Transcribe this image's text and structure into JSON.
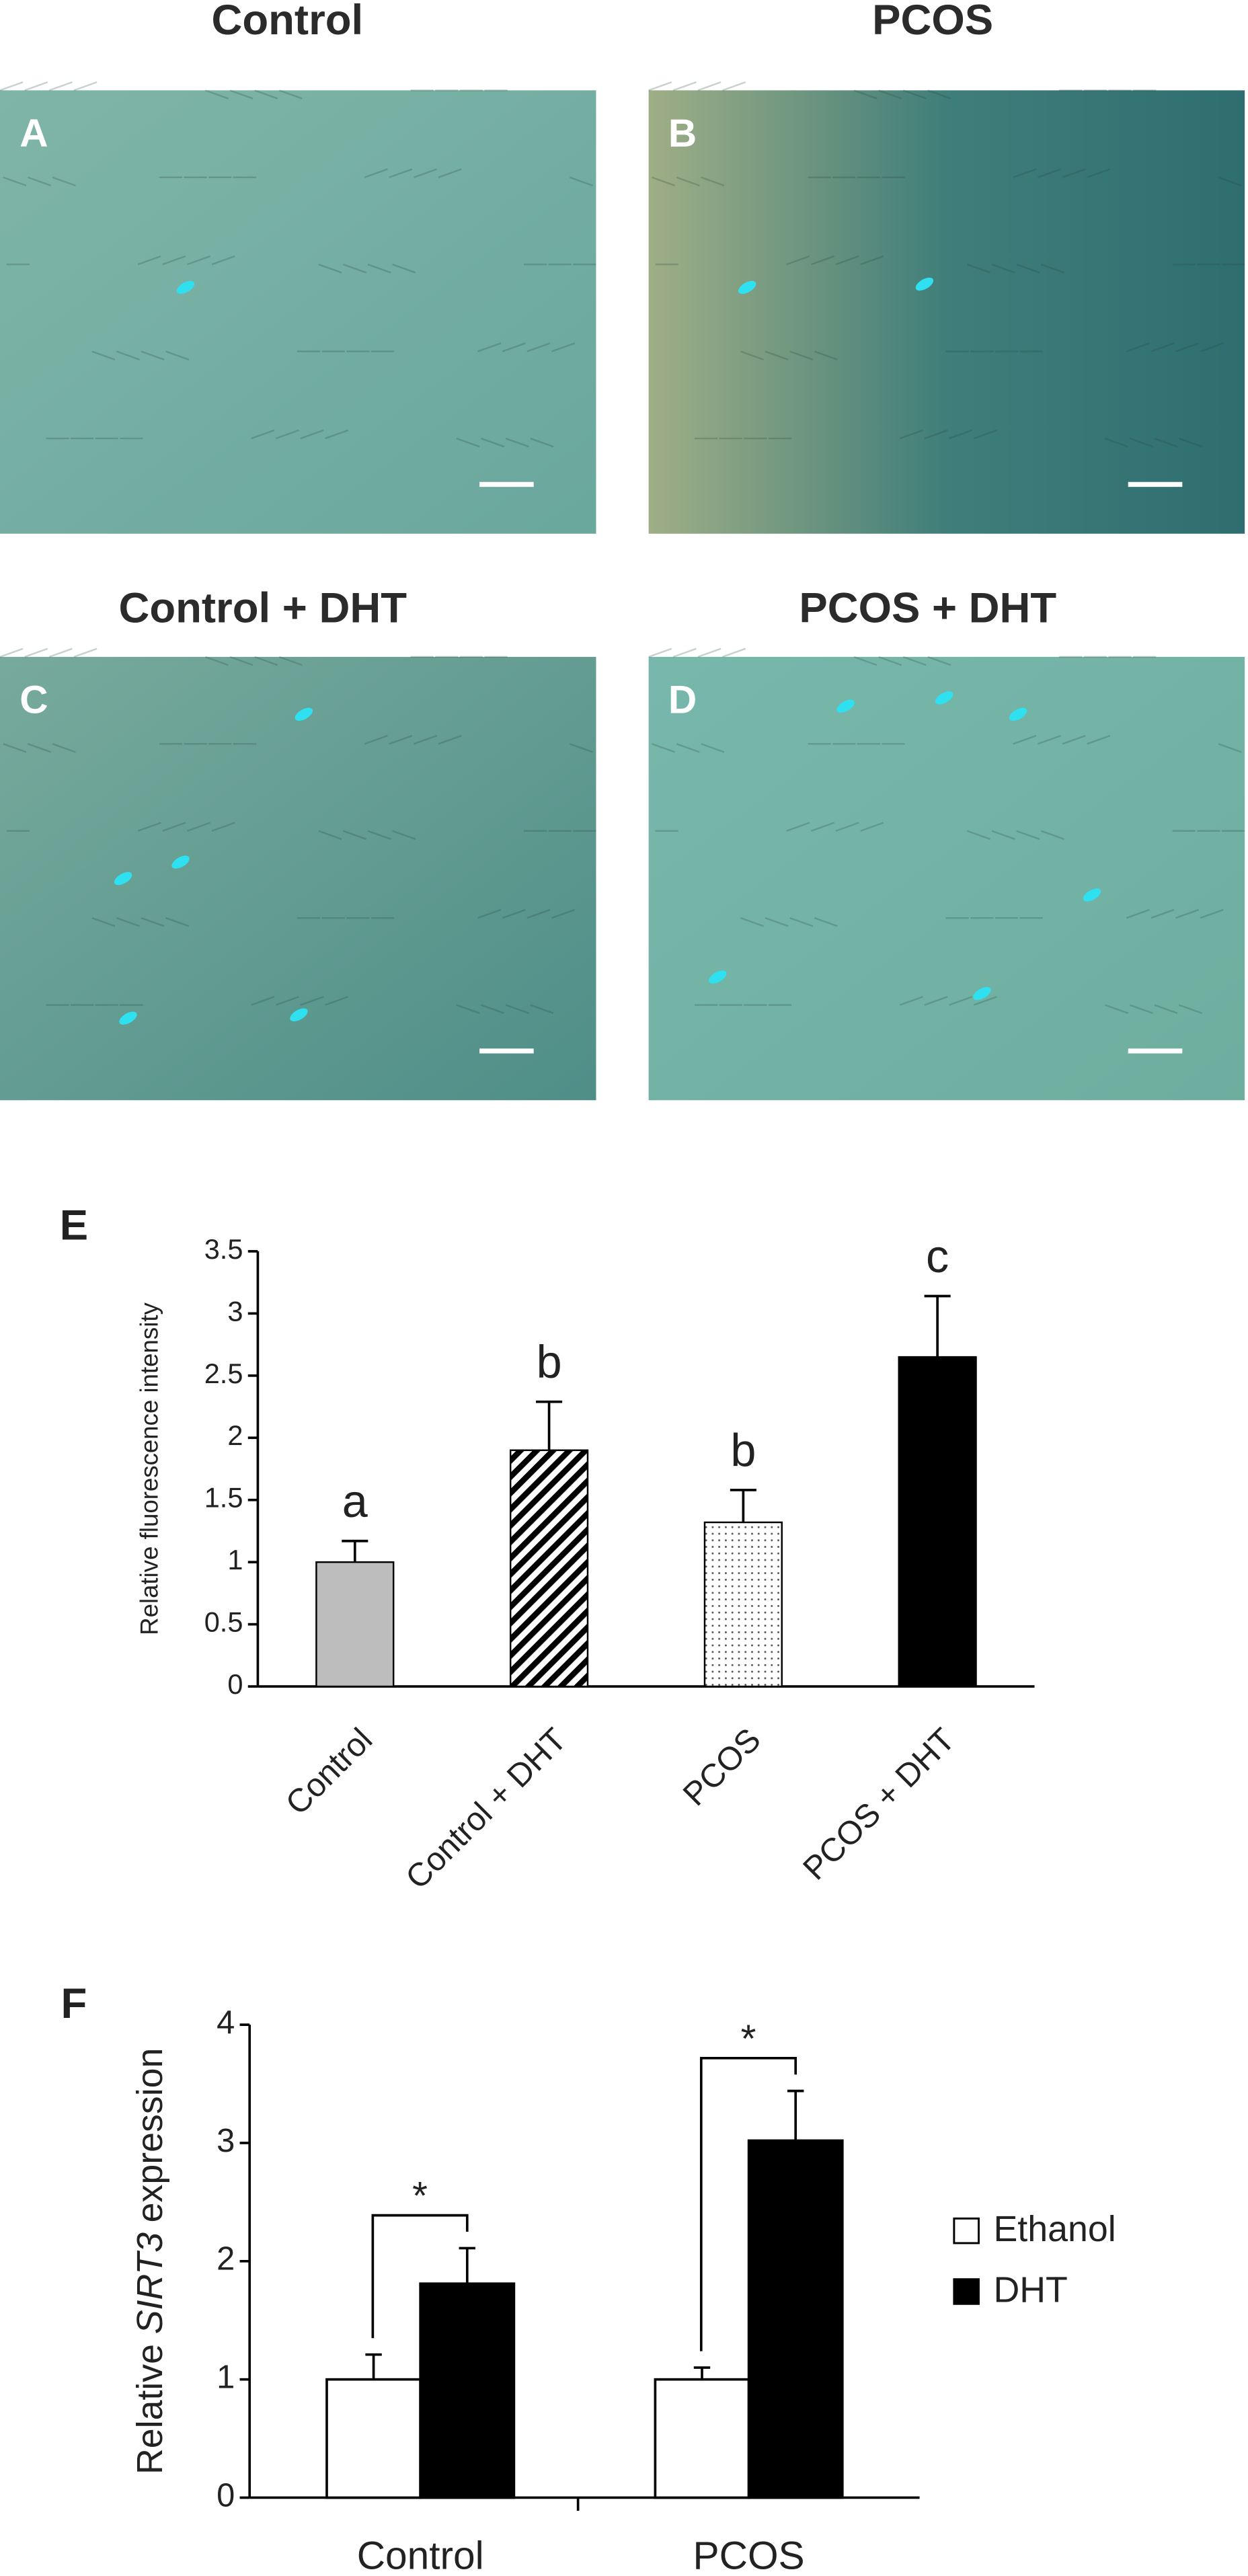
{
  "image_panels": [
    {
      "title": "Control",
      "letter": "A"
    },
    {
      "title": "PCOS",
      "letter": "B"
    },
    {
      "title": "Control + DHT",
      "letter": "C"
    },
    {
      "title": "PCOS + DHT",
      "letter": "D"
    }
  ],
  "chart_data": [
    {
      "type": "bar",
      "panel_label": "E",
      "ylabel": "Relative fluorescence intensity",
      "categories": [
        "Control",
        "Control + DHT",
        "PCOS",
        "PCOS + DHT"
      ],
      "values": [
        1.0,
        1.9,
        1.32,
        2.65
      ],
      "errors": [
        0.17,
        0.39,
        0.26,
        0.49
      ],
      "annotations": [
        "a",
        "b",
        "b",
        "c"
      ],
      "fills": [
        "#bdbdbd",
        "diagonal-hatch",
        "dotted",
        "#000000"
      ],
      "ylim": [
        0,
        3.5
      ],
      "yticks": [
        0,
        0.5,
        1,
        1.5,
        2,
        2.5,
        3,
        3.5
      ]
    },
    {
      "type": "grouped_bar",
      "panel_label": "F",
      "ylabel": [
        "Relative",
        "SIRT3",
        "expression"
      ],
      "categories": [
        "Control",
        "PCOS"
      ],
      "series": [
        {
          "name": "Ethanol",
          "color": "#ffffff",
          "values": [
            1.0,
            1.0
          ],
          "errors": [
            0.21,
            0.1
          ]
        },
        {
          "name": "DHT",
          "color": "#000000",
          "values": [
            1.81,
            3.02
          ],
          "errors": [
            0.3,
            0.42
          ]
        }
      ],
      "annotations": [
        "*",
        "*"
      ],
      "ylim": [
        0,
        4
      ],
      "yticks": [
        0,
        1,
        2,
        3,
        4
      ]
    }
  ]
}
